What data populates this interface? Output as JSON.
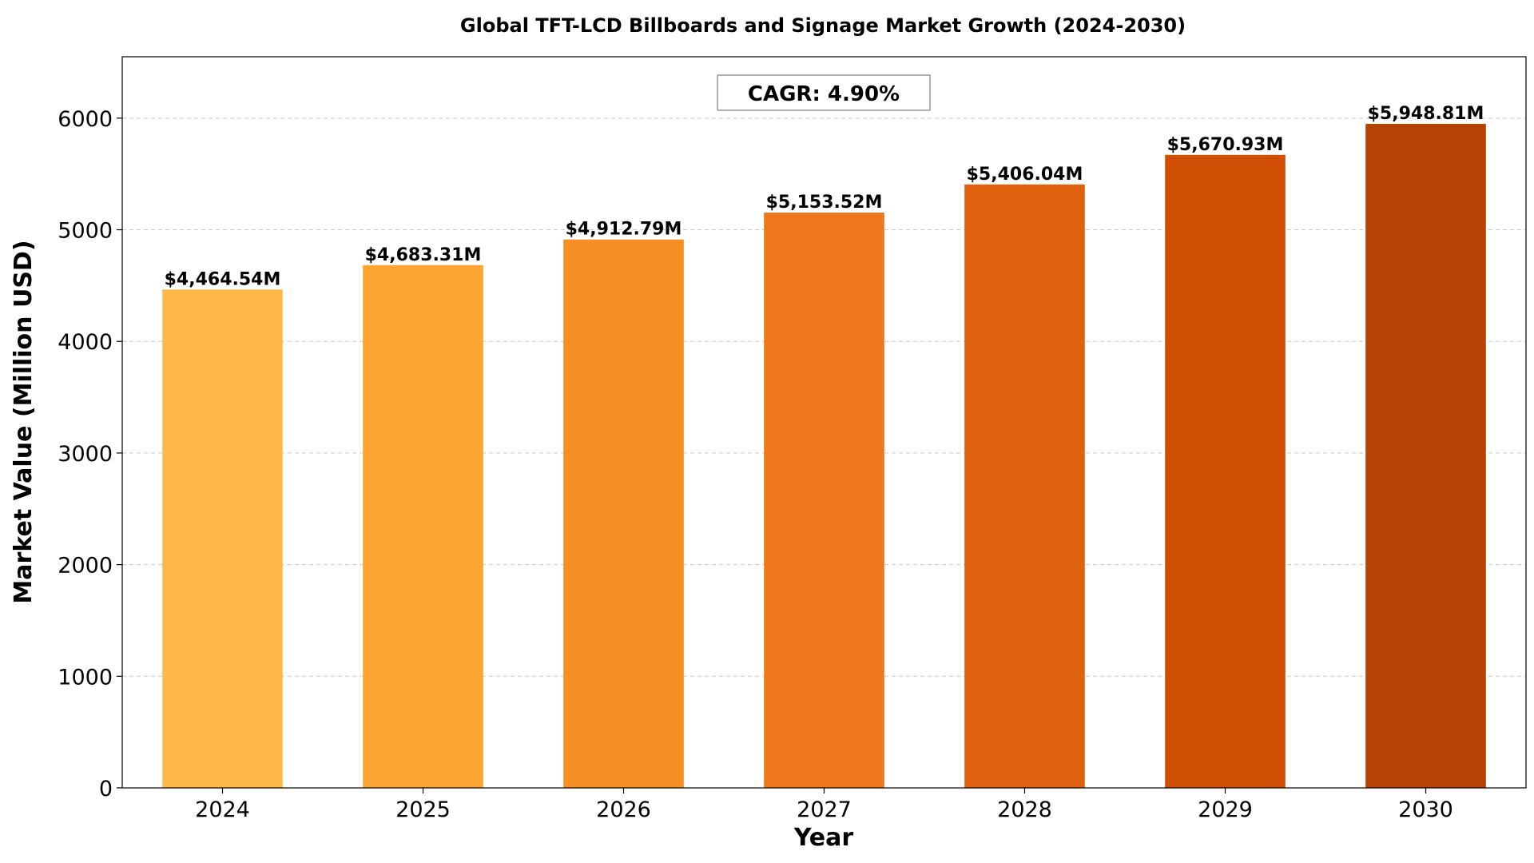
{
  "chart_data": {
    "type": "bar",
    "title": "Global TFT-LCD Billboards and Signage Market Growth (2024-2030)",
    "xlabel": "Year",
    "ylabel": "Market Value (Million USD)",
    "categories": [
      "2024",
      "2025",
      "2026",
      "2027",
      "2028",
      "2029",
      "2030"
    ],
    "values": [
      4464.54,
      4683.31,
      4912.79,
      5153.52,
      5406.04,
      5670.93,
      5948.81
    ],
    "data_labels": [
      "$4,464.54M",
      "$4,683.31M",
      "$4,912.79M",
      "$5,153.52M",
      "$5,406.04M",
      "$5,670.93M",
      "$5,948.81M"
    ],
    "bar_colors": [
      "#fdb847",
      "#fca532",
      "#f78f24",
      "#ee761b",
      "#e0610f",
      "#d04f04",
      "#b64304"
    ],
    "ylim": [
      0,
      6550
    ],
    "yticks": [
      0,
      1000,
      2000,
      3000,
      4000,
      5000,
      6000
    ],
    "grid": "y-dashed",
    "annotation": "CAGR: 4.90%"
  }
}
